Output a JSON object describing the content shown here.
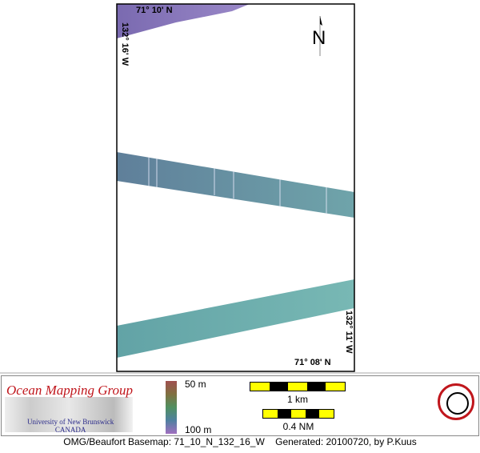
{
  "map": {
    "north_label": "N",
    "coords": {
      "top_lat": "71° 10' N",
      "left_lon": "132° 16' W",
      "right_lon": "132° 11' W",
      "bottom_lat": "71° 08' N"
    },
    "colors": {
      "shallow": "#8a78b8",
      "mid": "#6f93a4",
      "deep": "#6fb0ad"
    }
  },
  "footer": {
    "org_title": "Ocean Mapping Group",
    "university": "University of New Brunswick",
    "country": "CANADA",
    "depth_scale": {
      "min": "50 m",
      "max": "100 m"
    },
    "scale_km": "1 km",
    "scale_nm": "0.4 NM",
    "caption": "OMG/Beaufort Basemap: 71_10_N_132_16_W    Generated: 20100720, by P.Kuus"
  }
}
